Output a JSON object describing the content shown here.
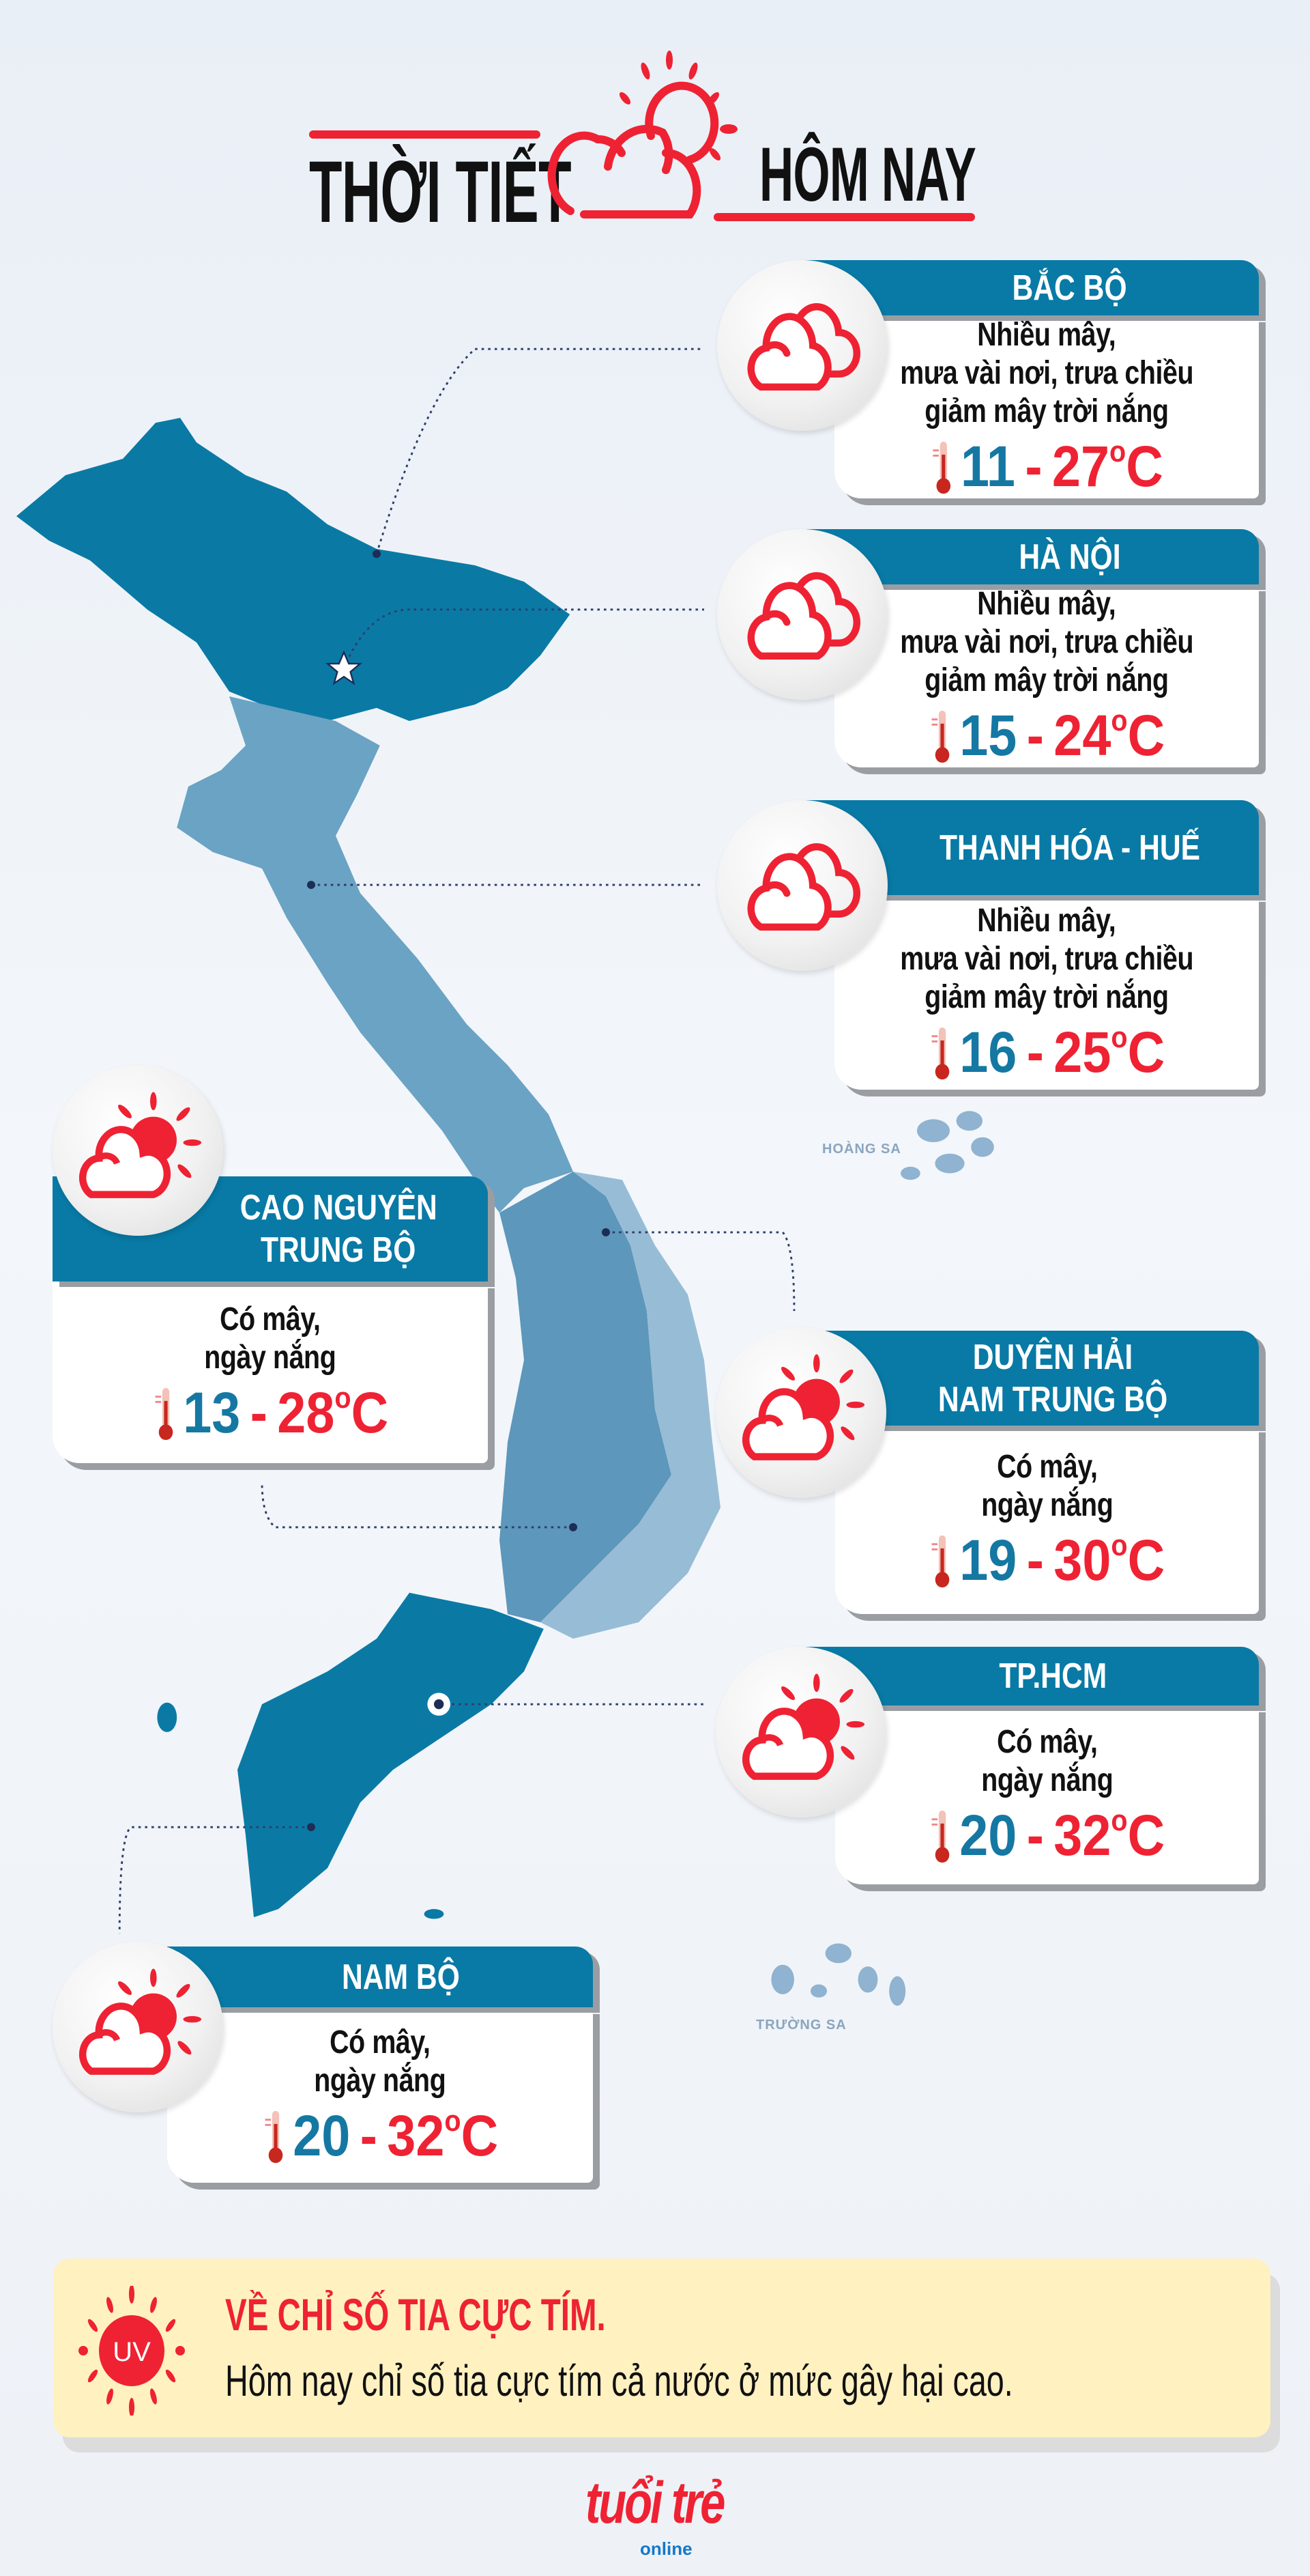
{
  "header": {
    "title_left": "THỜI TIẾT",
    "title_right": "HÔM NAY",
    "accent": "#ee2233"
  },
  "colors": {
    "band": "#087aa5",
    "low_temp": "#1578a3",
    "high_temp": "#ee2233",
    "map_dark": "#0a7aa5"
  },
  "regions": [
    {
      "title": [
        "BẮC BỘ"
      ],
      "icon": "cloud-icon",
      "desc": [
        "Nhiều mây,",
        "mưa vài nơi, trưa chiều",
        "giảm mây trời nắng"
      ],
      "low": "11",
      "high": "27",
      "unit": "C"
    },
    {
      "title": [
        "HÀ NỘI"
      ],
      "icon": "cloud-icon",
      "desc": [
        "Nhiều mây,",
        "mưa vài nơi, trưa chiều",
        "giảm mây trời nắng"
      ],
      "low": "15",
      "high": "24",
      "unit": "C"
    },
    {
      "title": [
        "THANH HÓA - HUẾ"
      ],
      "icon": "cloud-icon",
      "desc": [
        "Nhiều mây,",
        "mưa vài nơi, trưa chiều",
        "giảm mây trời nắng"
      ],
      "low": "16",
      "high": "25",
      "unit": "C"
    },
    {
      "title": [
        "CAO NGUYÊN",
        "TRUNG BỘ"
      ],
      "icon": "sun-cloud-icon",
      "desc": [
        "Có mây,",
        "ngày nắng"
      ],
      "low": "13",
      "high": "28",
      "unit": "C"
    },
    {
      "title": [
        "DUYÊN HẢI",
        "NAM TRUNG BỘ"
      ],
      "icon": "sun-cloud-icon",
      "desc": [
        "Có mây,",
        "ngày nắng"
      ],
      "low": "19",
      "high": "30",
      "unit": "C"
    },
    {
      "title": [
        "TP.HCM"
      ],
      "icon": "sun-cloud-icon",
      "desc": [
        "Có mây,",
        "ngày nắng"
      ],
      "low": "20",
      "high": "32",
      "unit": "C"
    },
    {
      "title": [
        "NAM BỘ"
      ],
      "icon": "sun-cloud-icon",
      "desc": [
        "Có mây,",
        "ngày nắng"
      ],
      "low": "20",
      "high": "32",
      "unit": "C"
    }
  ],
  "map": {
    "hoang_sa": "HOÀNG SA",
    "truong_sa": "TRƯỜNG SA"
  },
  "uv": {
    "icon_label": "UV",
    "title": "VỀ CHỈ SỐ TIA CỰC TÍM.",
    "text": "Hôm nay chỉ số tia cực tím cả nước ở mức gây hại cao."
  },
  "logo": {
    "main": "tuổi trẻ",
    "sub": "online"
  }
}
